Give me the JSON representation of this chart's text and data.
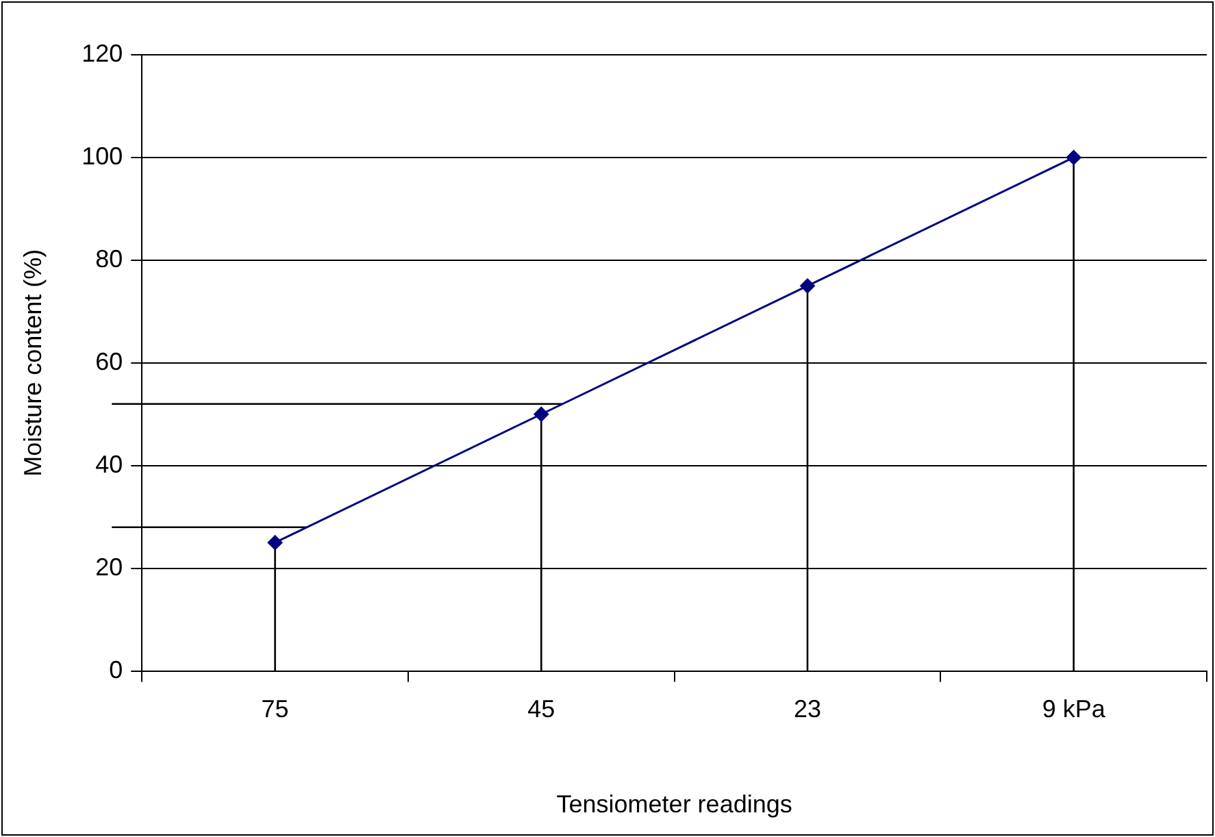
{
  "chart_data": {
    "type": "line",
    "xlabel": "Tensiometer readings",
    "ylabel": "Moisture content (%)",
    "categories": [
      "75",
      "45",
      "23",
      "9 kPa"
    ],
    "series": [
      {
        "color": "#000080",
        "values": [
          25,
          50,
          75,
          100
        ],
        "marker": "none"
      },
      {
        "type": "lollipop",
        "color": "#000080",
        "values": [
          25,
          50,
          75,
          100
        ]
      }
    ],
    "ref_lines": [
      {
        "axis": "y",
        "value": 28,
        "color": "#000000"
      },
      {
        "axis": "y",
        "value": 52,
        "color": "#000000"
      }
    ],
    "ylim": [
      0,
      120
    ],
    "yticks": [
      0,
      20,
      40,
      60,
      80,
      100,
      120
    ],
    "grid": "y",
    "marker": "diamond",
    "legend": false,
    "line_style": "solid"
  }
}
